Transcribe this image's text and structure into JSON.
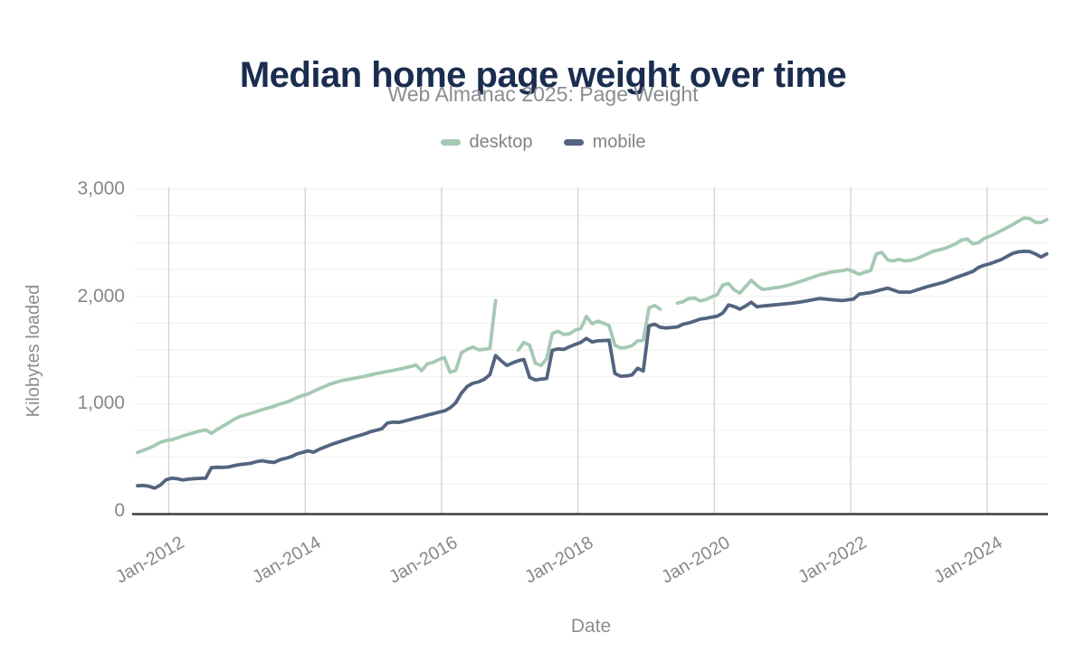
{
  "chart_data": {
    "type": "line",
    "title": "Median home page weight over time",
    "subtitle": "Web Almanac 2025: Page Weight",
    "xlabel": "Date",
    "ylabel": "Kilobytes loaded",
    "x_domain": [
      "2011-07",
      "2024-11"
    ],
    "ylim": [
      0,
      3000
    ],
    "y_ticks": [
      0,
      1000,
      2000,
      3000
    ],
    "y_tick_labels": [
      "0",
      "1,000",
      "2,000",
      "3,000"
    ],
    "y_minor_grid_step": 250,
    "x_tick_years": [
      2012,
      2014,
      2016,
      2018,
      2020,
      2022,
      2024
    ],
    "x_tick_labels": [
      "Jan-2012",
      "Jan-2014",
      "Jan-2016",
      "Jan-2018",
      "Jan-2020",
      "Jan-2022",
      "Jan-2024"
    ],
    "legend_position": "top-center",
    "grid": true,
    "gap_note": "null kb values are gaps (missing months) in the desktop line",
    "colors": {
      "title": "#1b2d4f",
      "muted_text": "#8a8d91",
      "tick_text": "#85888c",
      "v_gridline": "#d4d4d4",
      "h_gridline": "#ededed",
      "axis_line": "#3b3f45"
    },
    "series": [
      {
        "name": "desktop",
        "color": "#a5c9b3",
        "points": [
          [
            "2011-07",
            545
          ],
          [
            "2011-08",
            565
          ],
          [
            "2011-09",
            585
          ],
          [
            "2011-10",
            610
          ],
          [
            "2011-11",
            640
          ],
          [
            "2011-12",
            655
          ],
          [
            "2012-01",
            663
          ],
          [
            "2012-02",
            680
          ],
          [
            "2012-03",
            700
          ],
          [
            "2012-04",
            715
          ],
          [
            "2012-05",
            730
          ],
          [
            "2012-06",
            745
          ],
          [
            "2012-07",
            755
          ],
          [
            "2012-08",
            722
          ],
          [
            "2012-09",
            760
          ],
          [
            "2012-10",
            790
          ],
          [
            "2012-11",
            820
          ],
          [
            "2012-12",
            855
          ],
          [
            "2013-01",
            880
          ],
          [
            "2013-03",
            910
          ],
          [
            "2013-05",
            945
          ],
          [
            "2013-07",
            975
          ],
          [
            "2013-08",
            995
          ],
          [
            "2013-09",
            1010
          ],
          [
            "2013-10",
            1030
          ],
          [
            "2013-11",
            1055
          ],
          [
            "2013-12",
            1075
          ],
          [
            "2014-01",
            1090
          ],
          [
            "2014-03",
            1140
          ],
          [
            "2014-05",
            1185
          ],
          [
            "2014-07",
            1215
          ],
          [
            "2014-09",
            1235
          ],
          [
            "2014-11",
            1255
          ],
          [
            "2015-01",
            1280
          ],
          [
            "2015-03",
            1300
          ],
          [
            "2015-05",
            1320
          ],
          [
            "2015-07",
            1345
          ],
          [
            "2015-08",
            1360
          ],
          [
            "2015-09",
            1308
          ],
          [
            "2015-10",
            1370
          ],
          [
            "2015-11",
            1385
          ],
          [
            "2015-12",
            1410
          ],
          [
            "2016-01",
            1430
          ],
          [
            "2016-02",
            1292
          ],
          [
            "2016-03",
            1310
          ],
          [
            "2016-04",
            1475
          ],
          [
            "2016-05",
            1505
          ],
          [
            "2016-06",
            1528
          ],
          [
            "2016-07",
            1502
          ],
          [
            "2016-08",
            1505
          ],
          [
            "2016-09",
            1515
          ],
          [
            "2016-10",
            1960
          ],
          [
            "2016-11",
            null
          ],
          [
            "2016-12",
            null
          ],
          [
            "2017-01",
            null
          ],
          [
            "2017-02",
            1500
          ],
          [
            "2017-03",
            1570
          ],
          [
            "2017-04",
            1545
          ],
          [
            "2017-05",
            1378
          ],
          [
            "2017-06",
            1355
          ],
          [
            "2017-07",
            1420
          ],
          [
            "2017-08",
            1655
          ],
          [
            "2017-09",
            1675
          ],
          [
            "2017-10",
            1645
          ],
          [
            "2017-11",
            1650
          ],
          [
            "2017-12",
            1685
          ],
          [
            "2018-01",
            1700
          ],
          [
            "2018-02",
            1812
          ],
          [
            "2018-03",
            1745
          ],
          [
            "2018-04",
            1768
          ],
          [
            "2018-05",
            1750
          ],
          [
            "2018-06",
            1726
          ],
          [
            "2018-07",
            1545
          ],
          [
            "2018-08",
            1518
          ],
          [
            "2018-09",
            1525
          ],
          [
            "2018-10",
            1540
          ],
          [
            "2018-11",
            1585
          ],
          [
            "2018-12",
            1590
          ],
          [
            "2019-01",
            1892
          ],
          [
            "2019-02",
            1915
          ],
          [
            "2019-03",
            1880
          ],
          [
            "2019-04",
            null
          ],
          [
            "2019-05",
            null
          ],
          [
            "2019-06",
            1937
          ],
          [
            "2019-07",
            1950
          ],
          [
            "2019-08",
            1979
          ],
          [
            "2019-09",
            1984
          ],
          [
            "2019-10",
            1958
          ],
          [
            "2019-11",
            1970
          ],
          [
            "2019-12",
            1995
          ],
          [
            "2020-01",
            2015
          ],
          [
            "2020-02",
            2105
          ],
          [
            "2020-03",
            2120
          ],
          [
            "2020-04",
            2060
          ],
          [
            "2020-05",
            2030
          ],
          [
            "2020-06",
            2090
          ],
          [
            "2020-07",
            2150
          ],
          [
            "2020-08",
            2100
          ],
          [
            "2020-09",
            2065
          ],
          [
            "2020-10",
            2070
          ],
          [
            "2020-11",
            2080
          ],
          [
            "2020-12",
            2085
          ],
          [
            "2021-02",
            2110
          ],
          [
            "2021-04",
            2145
          ],
          [
            "2021-07",
            2200
          ],
          [
            "2021-09",
            2225
          ],
          [
            "2021-11",
            2240
          ],
          [
            "2021-12",
            2250
          ],
          [
            "2022-01",
            2230
          ],
          [
            "2022-02",
            2205
          ],
          [
            "2022-03",
            2225
          ],
          [
            "2022-04",
            2240
          ],
          [
            "2022-05",
            2395
          ],
          [
            "2022-06",
            2410
          ],
          [
            "2022-07",
            2340
          ],
          [
            "2022-08",
            2330
          ],
          [
            "2022-09",
            2345
          ],
          [
            "2022-10",
            2330
          ],
          [
            "2022-11",
            2335
          ],
          [
            "2022-12",
            2350
          ],
          [
            "2023-01",
            2372
          ],
          [
            "2023-03",
            2420
          ],
          [
            "2023-05",
            2445
          ],
          [
            "2023-07",
            2490
          ],
          [
            "2023-08",
            2525
          ],
          [
            "2023-09",
            2535
          ],
          [
            "2023-10",
            2490
          ],
          [
            "2023-11",
            2500
          ],
          [
            "2023-12",
            2540
          ],
          [
            "2024-01",
            2560
          ],
          [
            "2024-03",
            2612
          ],
          [
            "2024-05",
            2668
          ],
          [
            "2024-06",
            2700
          ],
          [
            "2024-07",
            2730
          ],
          [
            "2024-08",
            2725
          ],
          [
            "2024-09",
            2690
          ],
          [
            "2024-10",
            2688
          ],
          [
            "2024-11",
            2715
          ]
        ]
      },
      {
        "name": "mobile",
        "color": "#53647f",
        "points": [
          [
            "2011-07",
            235
          ],
          [
            "2011-08",
            238
          ],
          [
            "2011-09",
            230
          ],
          [
            "2011-10",
            212
          ],
          [
            "2011-11",
            240
          ],
          [
            "2011-12",
            290
          ],
          [
            "2012-01",
            305
          ],
          [
            "2012-02",
            300
          ],
          [
            "2012-03",
            288
          ],
          [
            "2012-04",
            297
          ],
          [
            "2012-05",
            301
          ],
          [
            "2012-06",
            303
          ],
          [
            "2012-07",
            305
          ],
          [
            "2012-08",
            403
          ],
          [
            "2012-09",
            407
          ],
          [
            "2012-10",
            405
          ],
          [
            "2012-11",
            410
          ],
          [
            "2012-12",
            422
          ],
          [
            "2013-01",
            432
          ],
          [
            "2013-03",
            445
          ],
          [
            "2013-04",
            460
          ],
          [
            "2013-05",
            468
          ],
          [
            "2013-06",
            458
          ],
          [
            "2013-07",
            452
          ],
          [
            "2013-08",
            475
          ],
          [
            "2013-09",
            490
          ],
          [
            "2013-10",
            505
          ],
          [
            "2013-11",
            530
          ],
          [
            "2013-12",
            545
          ],
          [
            "2014-01",
            560
          ],
          [
            "2014-02",
            548
          ],
          [
            "2014-03",
            575
          ],
          [
            "2014-05",
            618
          ],
          [
            "2014-07",
            652
          ],
          [
            "2014-09",
            688
          ],
          [
            "2014-11",
            718
          ],
          [
            "2014-12",
            738
          ],
          [
            "2015-01",
            752
          ],
          [
            "2015-02",
            766
          ],
          [
            "2015-03",
            820
          ],
          [
            "2015-04",
            828
          ],
          [
            "2015-05",
            825
          ],
          [
            "2015-06",
            838
          ],
          [
            "2015-07",
            852
          ],
          [
            "2015-08",
            866
          ],
          [
            "2015-09",
            878
          ],
          [
            "2015-10",
            893
          ],
          [
            "2015-11",
            906
          ],
          [
            "2015-12",
            920
          ],
          [
            "2016-01",
            932
          ],
          [
            "2016-02",
            960
          ],
          [
            "2016-03",
            1008
          ],
          [
            "2016-04",
            1098
          ],
          [
            "2016-05",
            1160
          ],
          [
            "2016-06",
            1190
          ],
          [
            "2016-07",
            1203
          ],
          [
            "2016-08",
            1226
          ],
          [
            "2016-09",
            1270
          ],
          [
            "2016-10",
            1448
          ],
          [
            "2016-11",
            1400
          ],
          [
            "2016-12",
            1355
          ],
          [
            "2017-01",
            1380
          ],
          [
            "2017-02",
            1400
          ],
          [
            "2017-03",
            1412
          ],
          [
            "2017-04",
            1245
          ],
          [
            "2017-05",
            1220
          ],
          [
            "2017-06",
            1228
          ],
          [
            "2017-07",
            1235
          ],
          [
            "2017-08",
            1498
          ],
          [
            "2017-09",
            1510
          ],
          [
            "2017-10",
            1505
          ],
          [
            "2017-11",
            1530
          ],
          [
            "2017-12",
            1552
          ],
          [
            "2018-01",
            1570
          ],
          [
            "2018-02",
            1608
          ],
          [
            "2018-03",
            1575
          ],
          [
            "2018-04",
            1585
          ],
          [
            "2018-05",
            1588
          ],
          [
            "2018-06",
            1590
          ],
          [
            "2018-07",
            1282
          ],
          [
            "2018-08",
            1255
          ],
          [
            "2018-09",
            1258
          ],
          [
            "2018-10",
            1268
          ],
          [
            "2018-11",
            1330
          ],
          [
            "2018-12",
            1305
          ],
          [
            "2019-01",
            1725
          ],
          [
            "2019-02",
            1740
          ],
          [
            "2019-03",
            1712
          ],
          [
            "2019-04",
            1705
          ],
          [
            "2019-05",
            1710
          ],
          [
            "2019-06",
            1715
          ],
          [
            "2019-07",
            1740
          ],
          [
            "2019-08",
            1752
          ],
          [
            "2019-09",
            1768
          ],
          [
            "2019-10",
            1788
          ],
          [
            "2019-11",
            1795
          ],
          [
            "2019-12",
            1805
          ],
          [
            "2020-01",
            1815
          ],
          [
            "2020-02",
            1845
          ],
          [
            "2020-03",
            1920
          ],
          [
            "2020-04",
            1905
          ],
          [
            "2020-05",
            1880
          ],
          [
            "2020-06",
            1910
          ],
          [
            "2020-07",
            1945
          ],
          [
            "2020-08",
            1902
          ],
          [
            "2020-09",
            1910
          ],
          [
            "2020-10",
            1915
          ],
          [
            "2020-11",
            1920
          ],
          [
            "2020-12",
            1925
          ],
          [
            "2021-02",
            1935
          ],
          [
            "2021-04",
            1950
          ],
          [
            "2021-07",
            1980
          ],
          [
            "2021-09",
            1970
          ],
          [
            "2021-11",
            1960
          ],
          [
            "2022-01",
            1975
          ],
          [
            "2022-02",
            2020
          ],
          [
            "2022-04",
            2035
          ],
          [
            "2022-06",
            2063
          ],
          [
            "2022-07",
            2077
          ],
          [
            "2022-09",
            2040
          ],
          [
            "2022-11",
            2040
          ],
          [
            "2022-12",
            2057
          ],
          [
            "2023-02",
            2091
          ],
          [
            "2023-05",
            2133
          ],
          [
            "2023-07",
            2175
          ],
          [
            "2023-10",
            2232
          ],
          [
            "2023-11",
            2270
          ],
          [
            "2023-12",
            2290
          ],
          [
            "2024-01",
            2303
          ],
          [
            "2024-03",
            2343
          ],
          [
            "2024-05",
            2400
          ],
          [
            "2024-06",
            2415
          ],
          [
            "2024-07",
            2420
          ],
          [
            "2024-08",
            2418
          ],
          [
            "2024-09",
            2395
          ],
          [
            "2024-10",
            2367
          ],
          [
            "2024-11",
            2395
          ]
        ]
      }
    ]
  }
}
